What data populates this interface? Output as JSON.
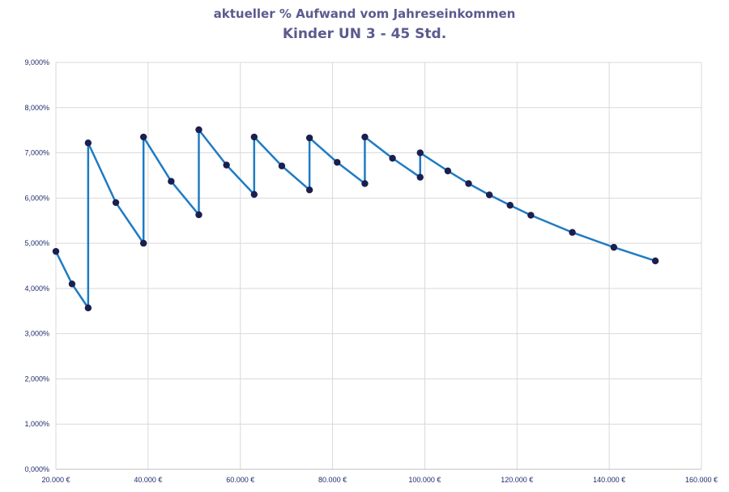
{
  "chart_data": {
    "type": "line",
    "title": "aktueller % Aufwand vom Jahreseinkommen",
    "subtitle": "Kinder UN 3 - 45 Std.",
    "xlabel": "",
    "ylabel": "",
    "xlim": [
      20000,
      160000
    ],
    "ylim": [
      0,
      9
    ],
    "x_ticks": [
      20000,
      40000,
      60000,
      80000,
      100000,
      120000,
      140000,
      160000
    ],
    "x_tick_labels": [
      "20.000 €",
      "40.000 €",
      "60.000 €",
      "80.000 €",
      "100.000 €",
      "120.000 €",
      "140.000 €",
      "160.000 €"
    ],
    "y_ticks": [
      0,
      1,
      2,
      3,
      4,
      5,
      6,
      7,
      8,
      9
    ],
    "y_tick_labels": [
      "0,000%",
      "1,000%",
      "2,000%",
      "3,000%",
      "4,000%",
      "5,000%",
      "6,000%",
      "7,000%",
      "8,000%",
      "9,000%"
    ],
    "grid": true,
    "line_color": "#1f7bc4",
    "marker_color": "#1a1f4e",
    "series": [
      {
        "x": [
          20000,
          23500,
          27000,
          27000,
          33000,
          39000,
          39000,
          45000,
          51000,
          51000,
          57000,
          63000,
          63000,
          69000,
          75000,
          75000,
          81000,
          87000,
          87000,
          93000,
          99000,
          99000,
          105000,
          109500,
          114000,
          118500,
          123000,
          132000,
          141000,
          150000
        ],
        "values": [
          4.82,
          4.1,
          3.57,
          7.22,
          5.9,
          5.0,
          7.35,
          6.37,
          5.63,
          7.51,
          6.73,
          6.08,
          7.35,
          6.71,
          6.18,
          7.33,
          6.79,
          6.32,
          7.35,
          6.88,
          6.46,
          7.0,
          6.6,
          6.32,
          6.07,
          5.84,
          5.62,
          5.24,
          4.91,
          4.61
        ]
      }
    ]
  }
}
